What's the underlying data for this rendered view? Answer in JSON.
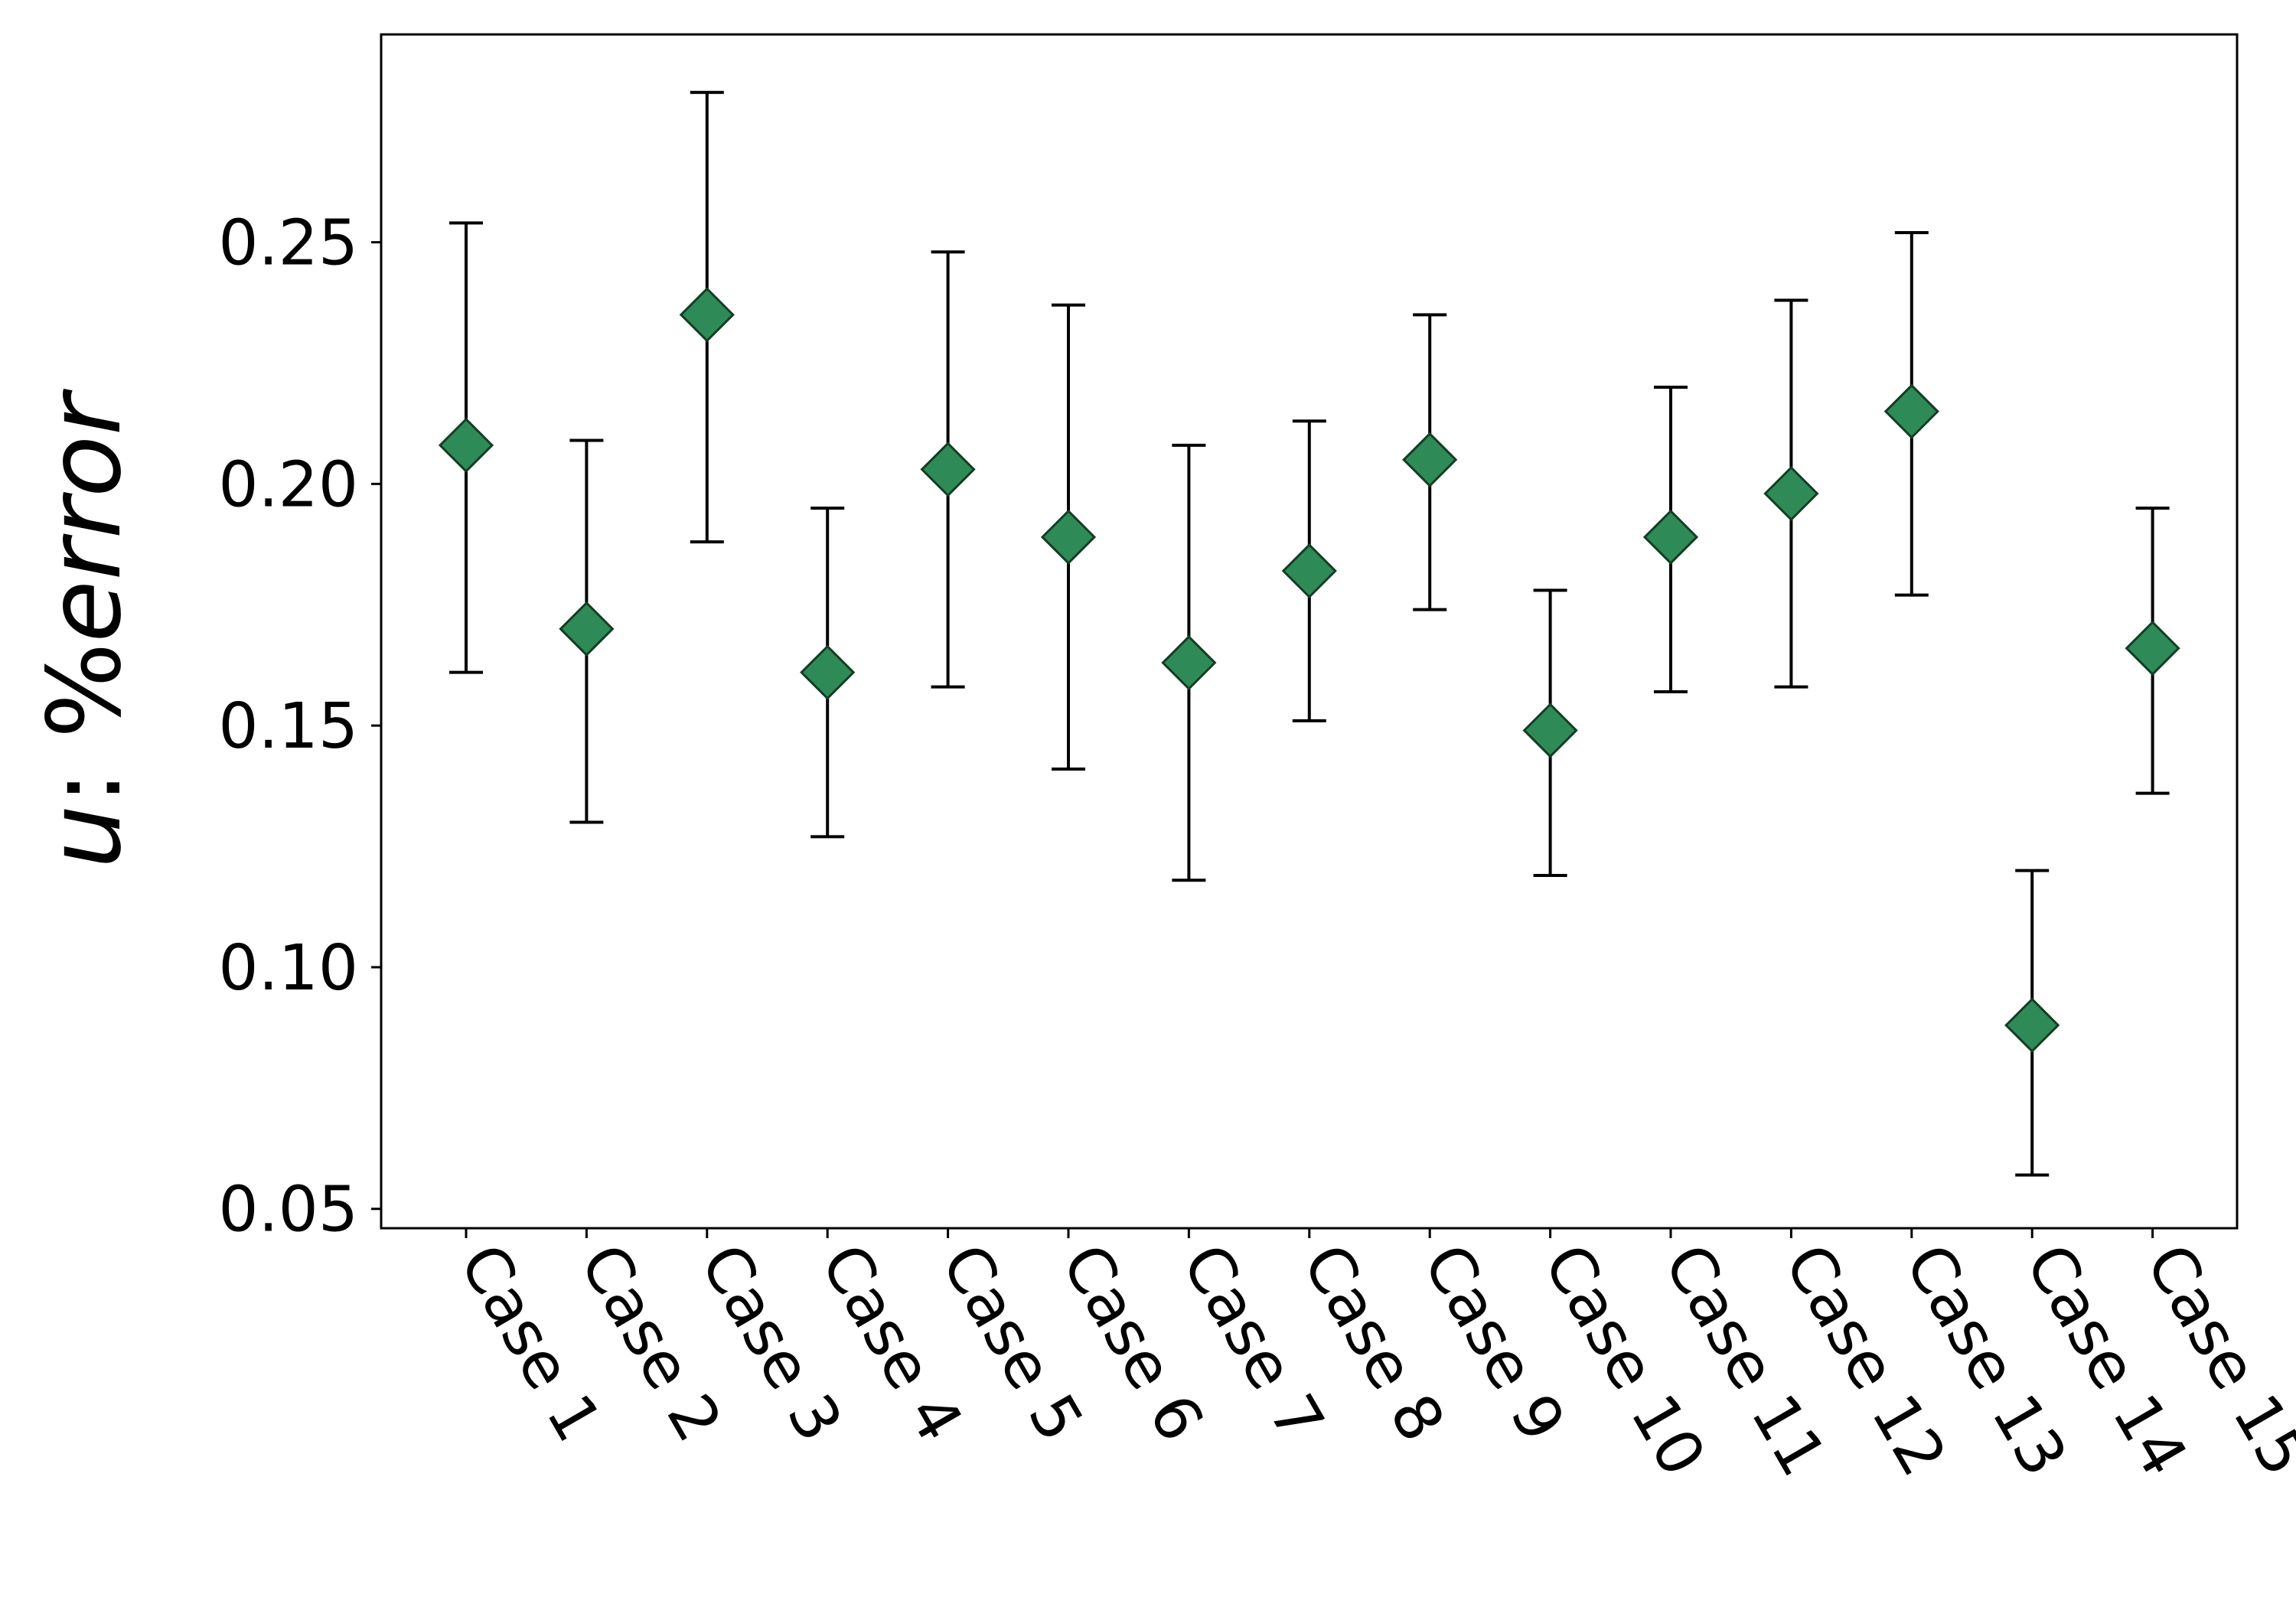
{
  "chart_data": {
    "type": "scatter",
    "subtype": "errorbar",
    "title": "",
    "xlabel": "",
    "ylabel": "u: %error",
    "ylabel_parts": {
      "variable": "u",
      "rest": ": %error"
    },
    "categories": [
      "Case 1",
      "Case 2",
      "Case 3",
      "Case 4",
      "Case 5",
      "Case 6",
      "Case 7",
      "Case 8",
      "Case 9",
      "Case 10",
      "Case 11",
      "Case 12",
      "Case 13",
      "Case 14",
      "Case 15"
    ],
    "values": [
      0.208,
      0.17,
      0.235,
      0.161,
      0.203,
      0.189,
      0.163,
      0.182,
      0.205,
      0.149,
      0.189,
      0.198,
      0.215,
      0.088,
      0.166
    ],
    "lower": [
      0.161,
      0.13,
      0.188,
      0.127,
      0.158,
      0.141,
      0.118,
      0.151,
      0.174,
      0.119,
      0.157,
      0.158,
      0.177,
      0.057,
      0.136
    ],
    "upper": [
      0.254,
      0.209,
      0.281,
      0.195,
      0.248,
      0.237,
      0.208,
      0.213,
      0.235,
      0.178,
      0.22,
      0.238,
      0.252,
      0.12,
      0.195
    ],
    "ylim": [
      0.046,
      0.293
    ],
    "yticks": [
      0.05,
      0.1,
      0.15,
      0.2,
      0.25
    ],
    "ytick_labels": [
      "0.05",
      "0.10",
      "0.15",
      "0.20",
      "0.25"
    ],
    "marker": "diamond",
    "marker_color": "#2e8b57",
    "errorbar_color": "#000000",
    "grid": false,
    "legend": "none"
  }
}
